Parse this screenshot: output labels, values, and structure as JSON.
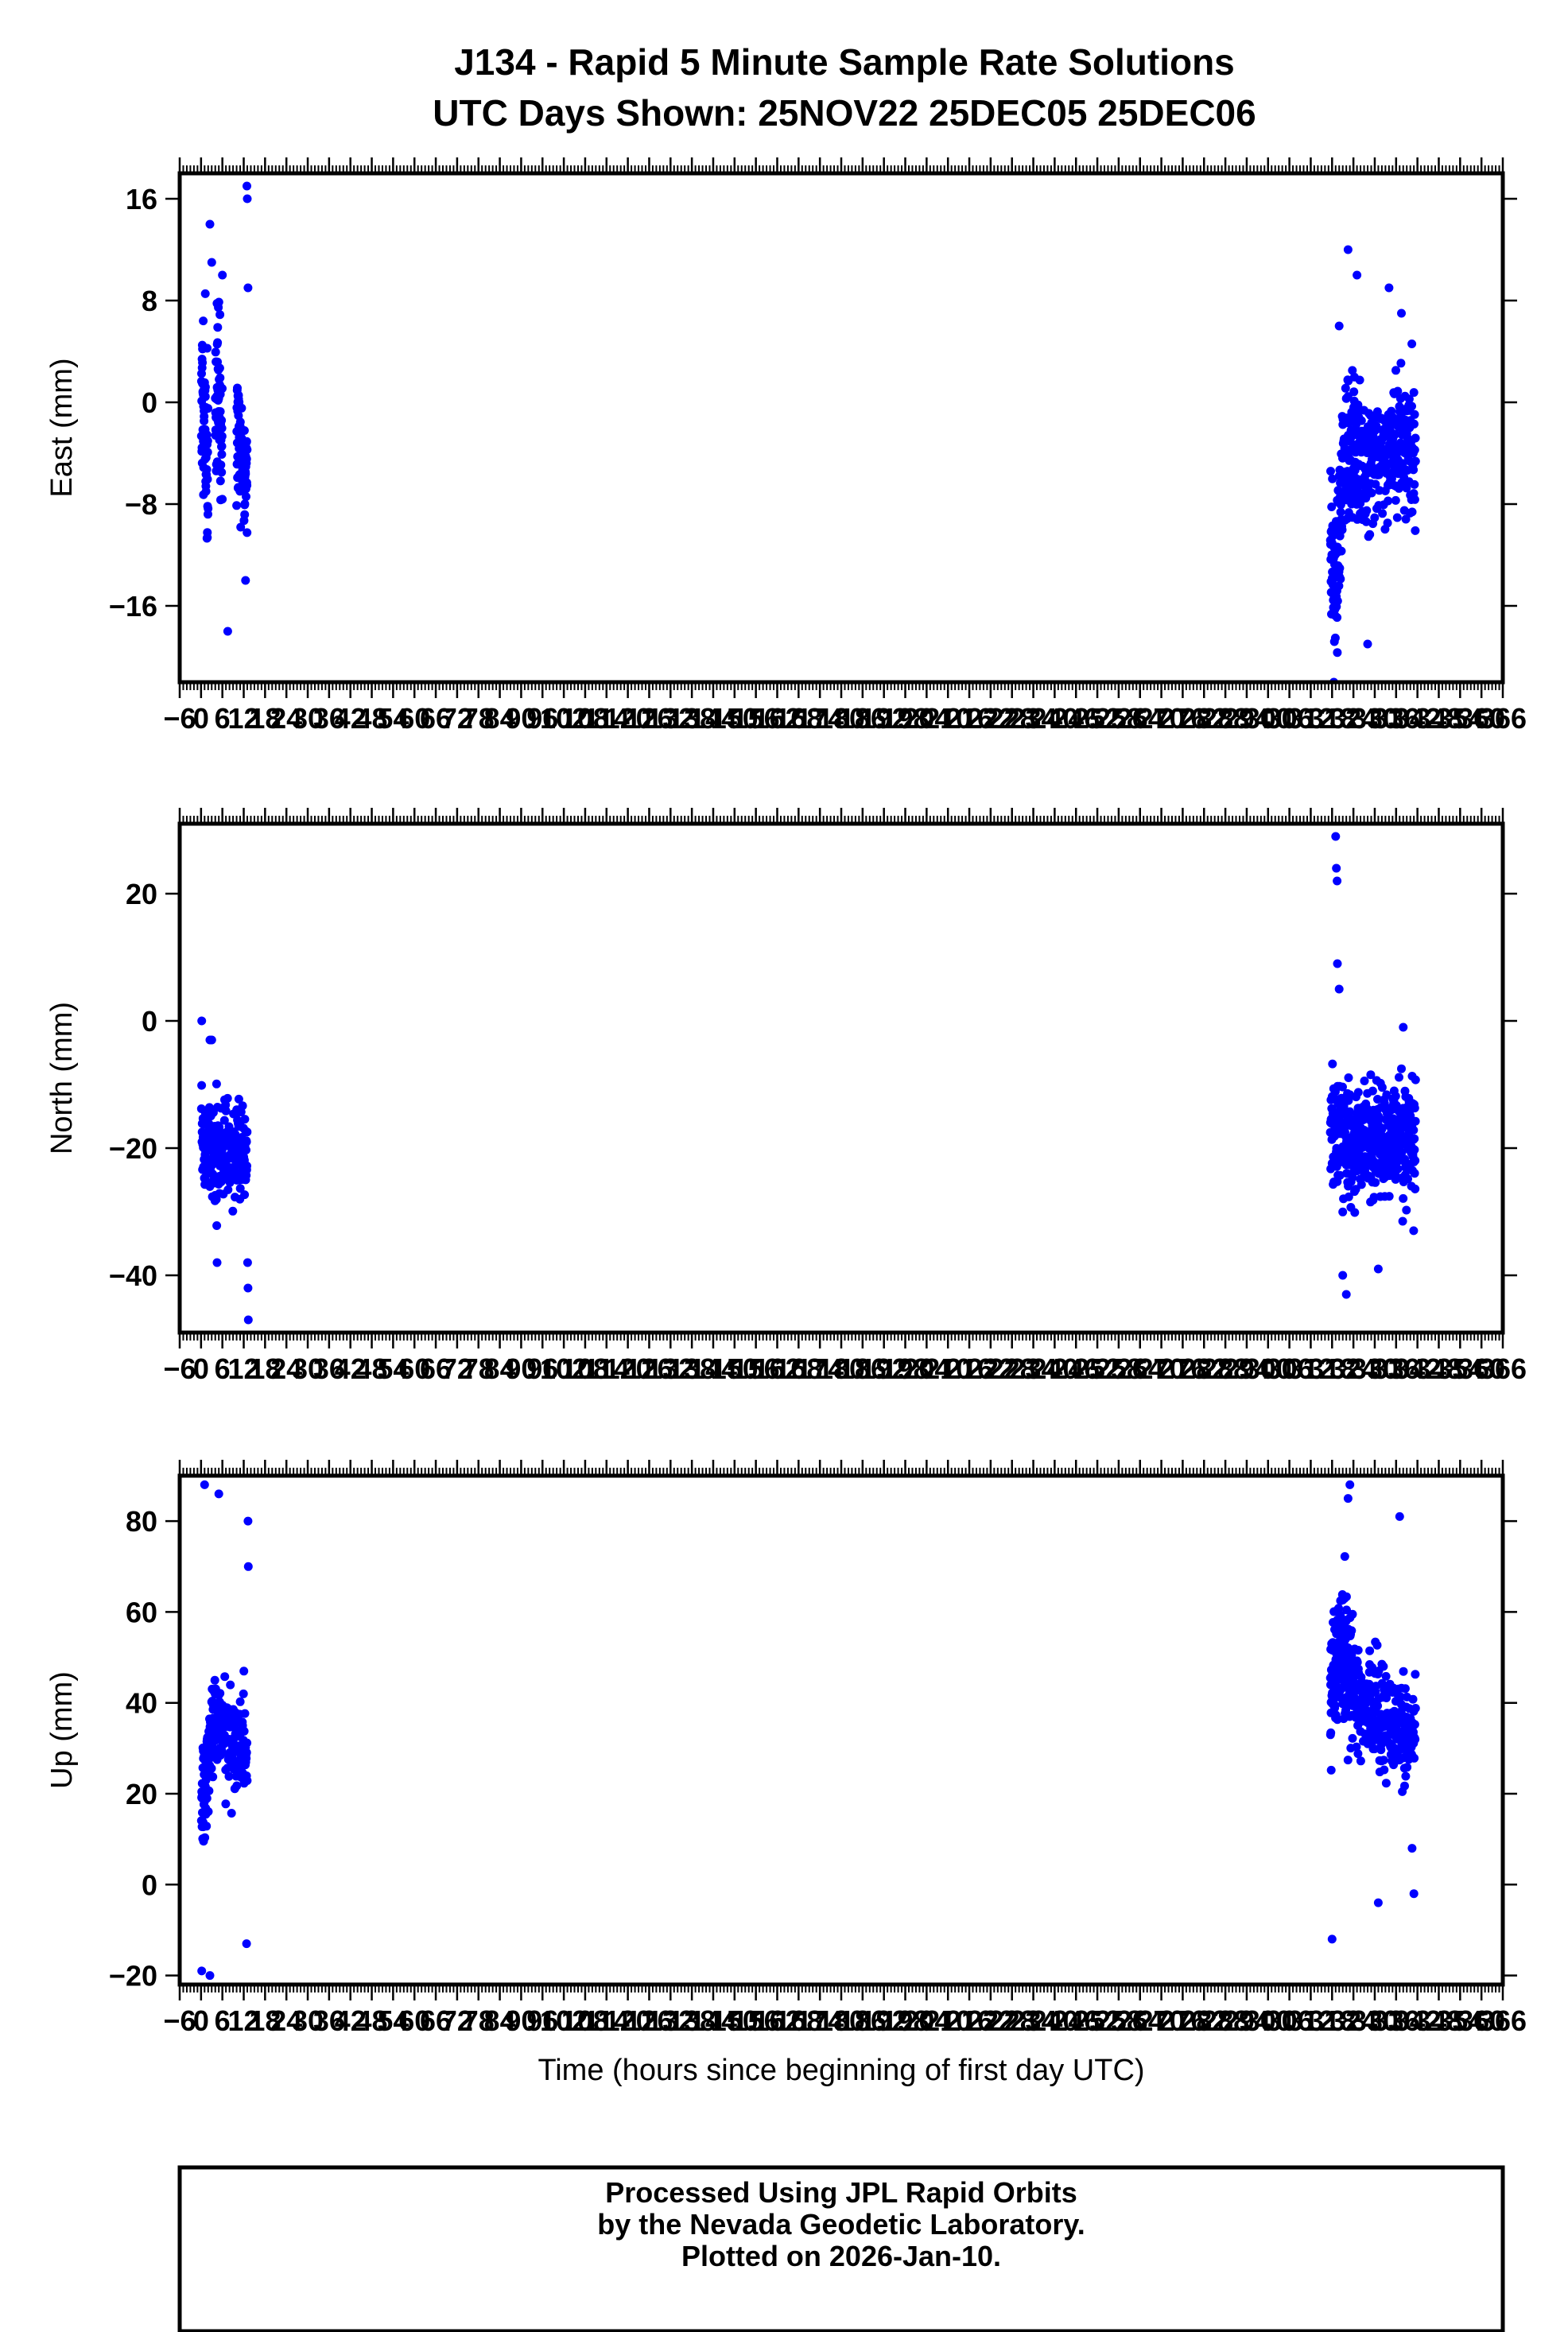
{
  "title_lines": [
    "J134 - Rapid 5 Minute Sample Rate Solutions",
    "UTC Days Shown:  25NOV22 25DEC05 25DEC06"
  ],
  "footer_lines": [
    "Processed Using JPL Rapid Orbits",
    "by the Nevada Geodetic Laboratory.",
    "Plotted on 2026-Jan-10."
  ],
  "colors": {
    "points": "#0000ff",
    "axes": "#000000"
  },
  "chart_data": [
    {
      "type": "scatter",
      "ylabel": "East (mm)",
      "xlabel": "",
      "xlim": [
        -6,
        366
      ],
      "ylim": [
        -22,
        18
      ],
      "yticks": [
        -16,
        -8,
        0,
        8,
        16
      ],
      "xticks": [
        -6,
        0,
        6,
        12,
        18,
        24,
        30,
        36,
        42,
        48,
        54,
        60,
        66,
        72,
        78,
        84,
        90,
        96,
        102,
        108,
        114,
        120,
        126,
        132,
        138,
        144,
        150,
        156,
        162,
        168,
        174,
        180,
        186,
        192,
        198,
        204,
        210,
        216,
        222,
        228,
        234,
        240,
        246,
        252,
        258,
        264,
        270,
        276,
        282,
        288,
        294,
        300,
        306,
        312,
        318,
        324,
        330,
        336,
        342,
        348,
        354,
        360,
        366
      ],
      "clusters": [
        {
          "t_start": 0.1,
          "t_end": 2.0,
          "trend": [
            [
              0,
              0
            ],
            [
              0.5,
              1
            ],
            [
              1,
              -1
            ],
            [
              1.5,
              -4
            ],
            [
              2,
              -6
            ]
          ],
          "spread": 5,
          "count": 70
        },
        {
          "t_start": 4.0,
          "t_end": 6.0,
          "trend": [
            [
              4,
              0
            ],
            [
              4.5,
              0
            ],
            [
              5,
              1
            ],
            [
              5.5,
              -2
            ],
            [
              6,
              -4
            ]
          ],
          "spread": 6,
          "count": 60
        },
        {
          "t_start": 10.0,
          "t_end": 13.0,
          "trend": [
            [
              10,
              -2
            ],
            [
              11,
              -4
            ],
            [
              12,
              -6
            ],
            [
              13,
              -5
            ]
          ],
          "spread": 4,
          "count": 90
        },
        {
          "t_start": 317.5,
          "t_end": 325.5,
          "trend": [
            [
              317.5,
              -10
            ],
            [
              319,
              -15
            ],
            [
              320.5,
              -8
            ],
            [
              322,
              -3
            ],
            [
              323.5,
              -4
            ],
            [
              325.5,
              -5
            ]
          ],
          "spread": 5,
          "count": 190
        },
        {
          "t_start": 325.5,
          "t_end": 341.5,
          "trend": [
            [
              325.5,
              -6
            ],
            [
              329,
              -4
            ],
            [
              333,
              -4
            ],
            [
              337,
              -3
            ],
            [
              341.5,
              -4
            ]
          ],
          "spread": 4.5,
          "count": 280
        }
      ],
      "outliers": [
        [
          2.5,
          14
        ],
        [
          3.0,
          11
        ],
        [
          12.9,
          17
        ],
        [
          13.0,
          16
        ],
        [
          13.2,
          9
        ],
        [
          6.0,
          10
        ],
        [
          7.5,
          -18
        ],
        [
          12.5,
          -14
        ],
        [
          318.5,
          -22
        ],
        [
          320.0,
          6
        ],
        [
          322.5,
          12
        ],
        [
          325.0,
          10
        ],
        [
          328.0,
          -19
        ],
        [
          334.0,
          9
        ],
        [
          337.5,
          7
        ]
      ],
      "seed": 11
    },
    {
      "type": "scatter",
      "ylabel": "North (mm)",
      "xlabel": "",
      "xlim": [
        -6,
        366
      ],
      "ylim": [
        -49,
        31
      ],
      "yticks": [
        -40,
        -20,
        0,
        20
      ],
      "xticks": [
        -6,
        0,
        6,
        12,
        18,
        24,
        30,
        36,
        42,
        48,
        54,
        60,
        66,
        72,
        78,
        84,
        90,
        96,
        102,
        108,
        114,
        120,
        126,
        132,
        138,
        144,
        150,
        156,
        162,
        168,
        174,
        180,
        186,
        192,
        198,
        204,
        210,
        216,
        222,
        228,
        234,
        240,
        246,
        252,
        258,
        264,
        270,
        276,
        282,
        288,
        294,
        300,
        306,
        312,
        318,
        324,
        330,
        336,
        342,
        348,
        354,
        360,
        366
      ],
      "clusters": [
        {
          "t_start": 0.1,
          "t_end": 13.0,
          "trend": [
            [
              0,
              -18
            ],
            [
              3,
              -21
            ],
            [
              6,
              -22
            ],
            [
              9,
              -20
            ],
            [
              13,
              -21
            ]
          ],
          "spread": 6,
          "count": 230
        },
        {
          "t_start": 317.5,
          "t_end": 341.5,
          "trend": [
            [
              317.5,
              -15
            ],
            [
              320,
              -18
            ],
            [
              324,
              -20
            ],
            [
              330,
              -19
            ],
            [
              336,
              -18
            ],
            [
              341.5,
              -18
            ]
          ],
          "spread": 7,
          "count": 470
        }
      ],
      "outliers": [
        [
          0.2,
          0
        ],
        [
          2.5,
          -3
        ],
        [
          3.0,
          -3
        ],
        [
          13.1,
          -38
        ],
        [
          13.2,
          -42
        ],
        [
          13.3,
          -47
        ],
        [
          4.5,
          -38
        ],
        [
          319.0,
          29
        ],
        [
          319.2,
          24
        ],
        [
          319.4,
          22
        ],
        [
          319.5,
          9
        ],
        [
          320.0,
          5
        ],
        [
          321.0,
          -40
        ],
        [
          322.0,
          -43
        ],
        [
          331.0,
          -39
        ],
        [
          338.0,
          -1
        ]
      ],
      "seed": 22
    },
    {
      "type": "scatter",
      "ylabel": "Up (mm)",
      "xlabel": "Time (hours since beginning of first day UTC)",
      "xlim": [
        -6,
        366
      ],
      "ylim": [
        -22,
        90
      ],
      "yticks": [
        -20,
        0,
        20,
        40,
        60,
        80
      ],
      "xticks": [
        -6,
        0,
        6,
        12,
        18,
        24,
        30,
        36,
        42,
        48,
        54,
        60,
        66,
        72,
        78,
        84,
        90,
        96,
        102,
        108,
        114,
        120,
        126,
        132,
        138,
        144,
        150,
        156,
        162,
        168,
        174,
        180,
        186,
        192,
        198,
        204,
        210,
        216,
        222,
        228,
        234,
        240,
        246,
        252,
        258,
        264,
        270,
        276,
        282,
        288,
        294,
        300,
        306,
        312,
        318,
        324,
        330,
        336,
        342,
        348,
        354,
        360,
        366
      ],
      "clusters": [
        {
          "t_start": 0.1,
          "t_end": 3.5,
          "trend": [
            [
              0,
              22
            ],
            [
              1,
              18
            ],
            [
              2,
              28
            ],
            [
              3.5,
              35
            ]
          ],
          "spread": 9,
          "count": 90
        },
        {
          "t_start": 3.5,
          "t_end": 13.0,
          "trend": [
            [
              3.5,
              38
            ],
            [
              6,
              35
            ],
            [
              9,
              33
            ],
            [
              13,
              30
            ]
          ],
          "spread": 9,
          "count": 150
        },
        {
          "t_start": 317.5,
          "t_end": 324.0,
          "trend": [
            [
              317.5,
              45
            ],
            [
              320,
              50
            ],
            [
              322,
              48
            ],
            [
              324,
              45
            ]
          ],
          "spread": 11,
          "count": 180
        },
        {
          "t_start": 324.0,
          "t_end": 341.5,
          "trend": [
            [
              324,
              42
            ],
            [
              328,
              40
            ],
            [
              332,
              36
            ],
            [
              336,
              35
            ],
            [
              341.5,
              33
            ]
          ],
          "spread": 9,
          "count": 280
        }
      ],
      "outliers": [
        [
          0.2,
          -19
        ],
        [
          2.5,
          -20
        ],
        [
          1.0,
          88
        ],
        [
          5.0,
          86
        ],
        [
          12.8,
          -13
        ],
        [
          13.2,
          80
        ],
        [
          13.3,
          70
        ],
        [
          318.0,
          -12
        ],
        [
          323.0,
          88
        ],
        [
          322.5,
          85
        ],
        [
          331.0,
          -4
        ],
        [
          337.0,
          81
        ],
        [
          341.0,
          -2
        ],
        [
          340.5,
          8
        ]
      ],
      "seed": 33
    }
  ]
}
